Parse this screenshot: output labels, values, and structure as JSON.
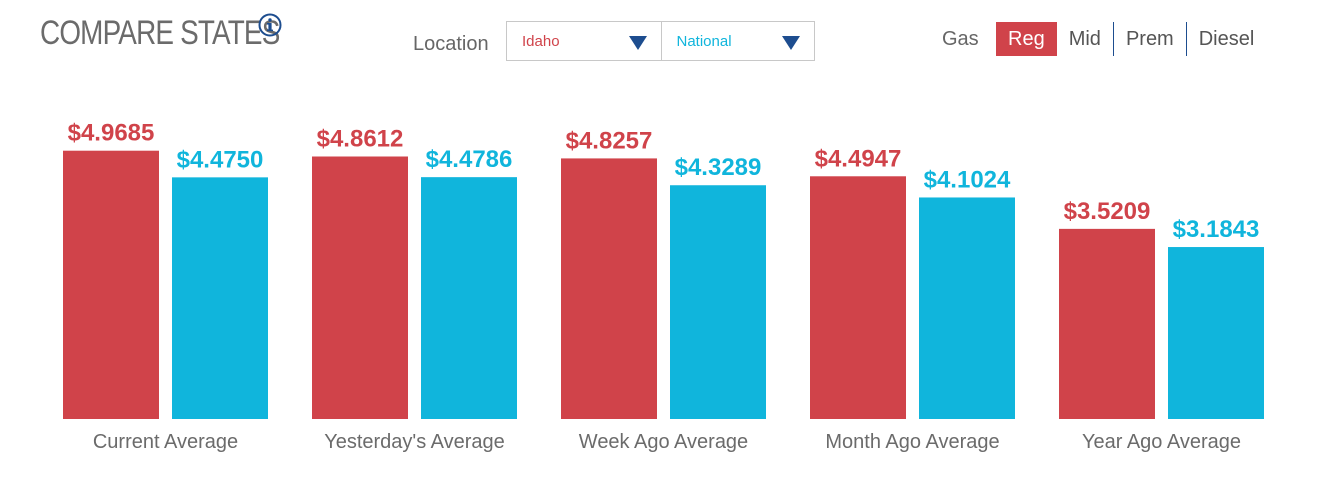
{
  "header": {
    "title": "COMPARE STATES",
    "location_label": "Location",
    "location_primary": "Idaho",
    "location_compare": "National",
    "gas_label": "Gas",
    "gas_types": [
      "Reg",
      "Mid",
      "Prem",
      "Diesel"
    ],
    "selected_gas": "Reg"
  },
  "icons": {
    "info": "info-icon",
    "dropdown": "caret-down-icon"
  },
  "colors": {
    "primary": "#d0434a",
    "compare": "#10b5dc",
    "caret": "#1d4d8f",
    "text": "#6b6b6b"
  },
  "chart_data": {
    "type": "bar",
    "categories": [
      "Current Average",
      "Yesterday's Average",
      "Week Ago Average",
      "Month Ago Average",
      "Year Ago Average"
    ],
    "series": [
      {
        "name": "Idaho",
        "values": [
          4.9685,
          4.8612,
          4.8257,
          4.4947,
          3.5209
        ],
        "labels": [
          "$4.9685",
          "$4.8612",
          "$4.8257",
          "$4.4947",
          "$3.5209"
        ]
      },
      {
        "name": "National",
        "values": [
          4.475,
          4.4786,
          4.3289,
          4.1024,
          3.1843
        ],
        "labels": [
          "$4.4750",
          "$4.4786",
          "$4.3289",
          "$4.1024",
          "$3.1843"
        ]
      }
    ],
    "title": "COMPARE STATES",
    "xlabel": "",
    "ylabel": "",
    "grid": false,
    "legend": "none"
  }
}
